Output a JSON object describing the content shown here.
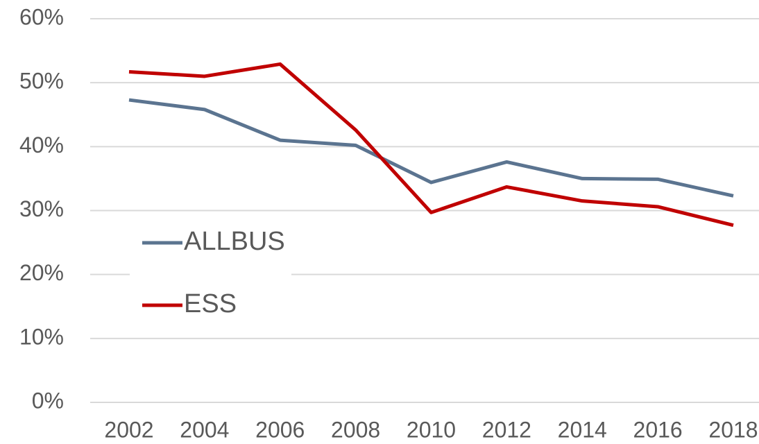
{
  "chart_data": {
    "type": "line",
    "categories": [
      "2002",
      "2004",
      "2006",
      "2008",
      "2010",
      "2012",
      "2014",
      "2016",
      "2018"
    ],
    "series": [
      {
        "name": "ALLBUS",
        "color": "#5b7490",
        "values": [
          47.3,
          45.8,
          41.0,
          40.2,
          34.4,
          37.6,
          35.0,
          34.9,
          32.3
        ]
      },
      {
        "name": "ESS",
        "color": "#c00000",
        "values": [
          51.7,
          51.0,
          52.9,
          42.6,
          29.7,
          33.7,
          31.5,
          30.6,
          27.7
        ]
      }
    ],
    "ylim": [
      0,
      60
    ],
    "yticks": [
      {
        "value": 0,
        "label": "0%"
      },
      {
        "value": 10,
        "label": "10%"
      },
      {
        "value": 20,
        "label": "20%"
      },
      {
        "value": 30,
        "label": "30%"
      },
      {
        "value": 40,
        "label": "40%"
      },
      {
        "value": 50,
        "label": "50%"
      },
      {
        "value": 60,
        "label": "60%"
      }
    ],
    "grid": true,
    "legend": "left"
  }
}
